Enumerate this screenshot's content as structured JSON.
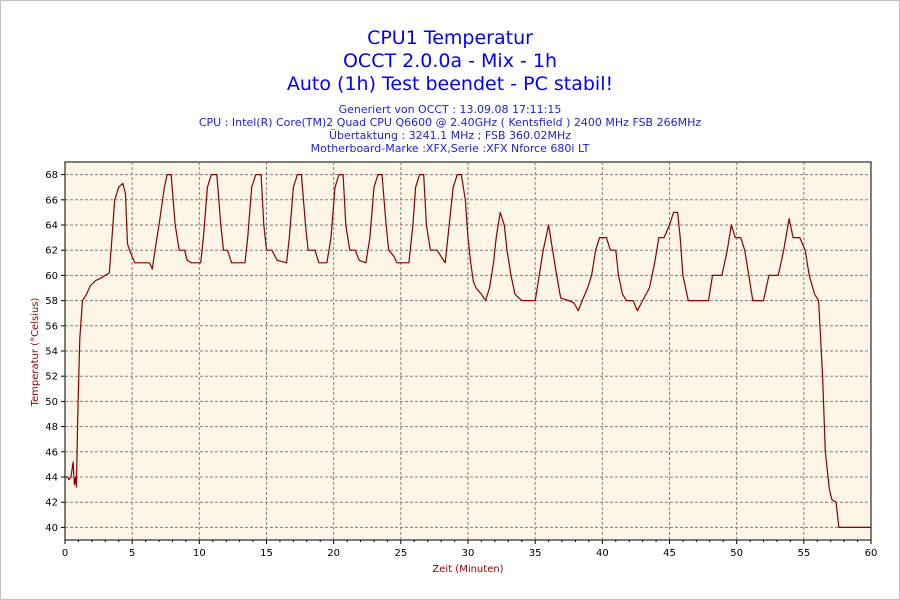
{
  "header": {
    "title": "CPU1 Temperatur",
    "subtitle": "OCCT 2.0.0a - Mix - 1h",
    "status": "Auto (1h) Test beendet - PC stabil!",
    "info": [
      "Generiert von OCCT : 13.09.08 17:11:15",
      "CPU : Intel(R) Core(TM)2 Quad CPU Q6600 @ 2.40GHz ( Kentsfield ) 2400 MHz FSB 266MHz",
      "Übertaktung : 3241.1 MHz ; FSB 360.02MHz",
      "Motherboard-Marke :XFX,Serie :XFX Nforce 680i LT"
    ]
  },
  "colors": {
    "title": "#0000ff",
    "info": "#2020e0",
    "plot_background": "#fdf5e6",
    "line": "#8b0000",
    "grid": "#808080"
  },
  "chart_data": {
    "type": "line",
    "xlabel": "Zeit (Minuten)",
    "ylabel": "Temperatur (°Celsius)",
    "xlim": [
      0,
      60
    ],
    "ylim": [
      39,
      69
    ],
    "xticks": [
      0,
      5,
      10,
      15,
      20,
      25,
      30,
      35,
      40,
      45,
      50,
      55,
      60
    ],
    "yticks": [
      40,
      42,
      44,
      46,
      48,
      50,
      52,
      54,
      56,
      58,
      60,
      62,
      64,
      66,
      68
    ],
    "grid": true,
    "series": [
      {
        "values": [
          [
            0,
            44
          ],
          [
            0.2,
            44
          ],
          [
            0.3,
            43.8
          ],
          [
            0.45,
            44
          ],
          [
            0.6,
            45.2
          ],
          [
            0.7,
            43.4
          ],
          [
            0.8,
            44
          ],
          [
            0.85,
            43.2
          ],
          [
            0.95,
            49
          ],
          [
            1.1,
            55
          ],
          [
            1.3,
            58
          ],
          [
            1.6,
            58.5
          ],
          [
            1.9,
            59.2
          ],
          [
            2.3,
            59.6
          ],
          [
            2.7,
            59.8
          ],
          [
            3.3,
            60.2
          ],
          [
            3.5,
            63
          ],
          [
            3.7,
            66
          ],
          [
            4.0,
            67
          ],
          [
            4.3,
            67.3
          ],
          [
            4.5,
            66.5
          ],
          [
            4.65,
            62.5
          ],
          [
            4.8,
            62
          ],
          [
            5.2,
            61
          ],
          [
            6.3,
            61
          ],
          [
            6.5,
            60.5
          ],
          [
            6.7,
            62
          ],
          [
            7.0,
            64
          ],
          [
            7.4,
            67
          ],
          [
            7.6,
            68
          ],
          [
            7.9,
            68
          ],
          [
            8.2,
            64
          ],
          [
            8.5,
            62
          ],
          [
            8.9,
            62
          ],
          [
            9.1,
            61.2
          ],
          [
            9.4,
            61
          ],
          [
            10.1,
            61
          ],
          [
            10.3,
            63
          ],
          [
            10.6,
            67
          ],
          [
            10.9,
            68
          ],
          [
            11.3,
            68
          ],
          [
            11.6,
            64
          ],
          [
            11.8,
            62
          ],
          [
            12.1,
            62
          ],
          [
            12.4,
            61
          ],
          [
            13.4,
            61
          ],
          [
            13.6,
            63
          ],
          [
            13.9,
            67
          ],
          [
            14.2,
            68
          ],
          [
            14.6,
            68
          ],
          [
            14.8,
            64
          ],
          [
            15.0,
            62
          ],
          [
            15.4,
            62
          ],
          [
            15.8,
            61.2
          ],
          [
            16.5,
            61
          ],
          [
            16.7,
            63
          ],
          [
            17.0,
            67
          ],
          [
            17.3,
            68
          ],
          [
            17.6,
            68
          ],
          [
            17.9,
            64
          ],
          [
            18.1,
            62
          ],
          [
            18.6,
            62
          ],
          [
            18.9,
            61
          ],
          [
            19.5,
            61
          ],
          [
            19.8,
            63
          ],
          [
            20.1,
            67
          ],
          [
            20.4,
            68
          ],
          [
            20.7,
            68
          ],
          [
            20.9,
            64
          ],
          [
            21.2,
            62
          ],
          [
            21.6,
            62
          ],
          [
            21.9,
            61.2
          ],
          [
            22.4,
            61
          ],
          [
            22.7,
            63
          ],
          [
            23.0,
            67
          ],
          [
            23.3,
            68
          ],
          [
            23.6,
            68
          ],
          [
            23.9,
            64
          ],
          [
            24.1,
            62
          ],
          [
            24.5,
            61.5
          ],
          [
            24.7,
            61
          ],
          [
            25.6,
            61
          ],
          [
            25.9,
            64
          ],
          [
            26.1,
            67
          ],
          [
            26.4,
            68
          ],
          [
            26.7,
            68
          ],
          [
            26.9,
            64
          ],
          [
            27.2,
            62
          ],
          [
            27.7,
            62
          ],
          [
            28.0,
            61.5
          ],
          [
            28.3,
            61
          ],
          [
            28.6,
            64
          ],
          [
            28.9,
            67
          ],
          [
            29.2,
            68
          ],
          [
            29.5,
            68
          ],
          [
            29.8,
            66
          ],
          [
            30.0,
            63
          ],
          [
            30.2,
            61
          ],
          [
            30.4,
            59.5
          ],
          [
            30.6,
            59
          ],
          [
            31.0,
            58.5
          ],
          [
            31.3,
            58
          ],
          [
            31.6,
            59
          ],
          [
            31.9,
            61
          ],
          [
            32.1,
            63
          ],
          [
            32.4,
            65
          ],
          [
            32.7,
            64
          ],
          [
            32.9,
            62
          ],
          [
            33.2,
            60
          ],
          [
            33.5,
            58.5
          ],
          [
            34.0,
            58
          ],
          [
            35.0,
            58
          ],
          [
            35.3,
            60
          ],
          [
            35.6,
            62
          ],
          [
            36.0,
            64
          ],
          [
            36.3,
            62
          ],
          [
            36.6,
            60
          ],
          [
            36.9,
            58.2
          ],
          [
            37.5,
            58
          ],
          [
            37.9,
            57.8
          ],
          [
            38.2,
            57.2
          ],
          [
            38.5,
            58
          ],
          [
            38.9,
            59
          ],
          [
            39.2,
            60
          ],
          [
            39.5,
            62
          ],
          [
            39.8,
            63
          ],
          [
            40.3,
            63
          ],
          [
            40.6,
            62
          ],
          [
            41.0,
            62
          ],
          [
            41.2,
            60
          ],
          [
            41.5,
            58.5
          ],
          [
            41.8,
            58
          ],
          [
            42.3,
            58
          ],
          [
            42.6,
            57.2
          ],
          [
            43.0,
            58
          ],
          [
            43.5,
            59
          ],
          [
            43.9,
            61
          ],
          [
            44.2,
            63
          ],
          [
            44.6,
            63
          ],
          [
            45.0,
            64
          ],
          [
            45.3,
            65
          ],
          [
            45.6,
            65
          ],
          [
            45.8,
            63
          ],
          [
            46.0,
            60
          ],
          [
            46.2,
            59
          ],
          [
            46.4,
            58
          ],
          [
            47.9,
            58
          ],
          [
            48.2,
            60
          ],
          [
            48.9,
            60
          ],
          [
            49.3,
            62
          ],
          [
            49.6,
            64
          ],
          [
            49.9,
            63
          ],
          [
            50.3,
            63
          ],
          [
            50.6,
            62
          ],
          [
            50.9,
            60
          ],
          [
            51.2,
            58
          ],
          [
            52.0,
            58
          ],
          [
            52.4,
            60
          ],
          [
            53.1,
            60
          ],
          [
            53.5,
            62
          ],
          [
            53.9,
            64.5
          ],
          [
            54.2,
            63
          ],
          [
            54.7,
            63
          ],
          [
            55.1,
            62
          ],
          [
            55.4,
            60
          ],
          [
            55.8,
            58.5
          ],
          [
            56.1,
            58
          ],
          [
            56.4,
            52
          ],
          [
            56.6,
            46
          ],
          [
            56.9,
            43
          ],
          [
            57.1,
            42.2
          ],
          [
            57.4,
            42
          ],
          [
            57.6,
            40
          ],
          [
            60,
            40
          ]
        ]
      }
    ]
  }
}
